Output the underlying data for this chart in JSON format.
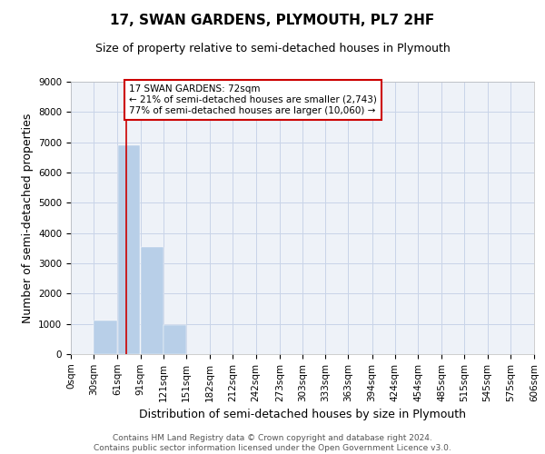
{
  "title": "17, SWAN GARDENS, PLYMOUTH, PL7 2HF",
  "subtitle": "Size of property relative to semi-detached houses in Plymouth",
  "xlabel": "Distribution of semi-detached houses by size in Plymouth",
  "ylabel": "Number of semi-detached properties",
  "property_size": 72,
  "property_label": "17 SWAN GARDENS: 72sqm",
  "smaller_pct": 21,
  "smaller_count": 2743,
  "larger_pct": 77,
  "larger_count": 10060,
  "bin_edges": [
    0,
    30,
    61,
    91,
    121,
    151,
    182,
    212,
    242,
    273,
    303,
    333,
    363,
    394,
    424,
    454,
    485,
    515,
    545,
    575,
    606
  ],
  "bar_values": [
    0,
    1100,
    6900,
    3550,
    950,
    0,
    0,
    0,
    0,
    0,
    0,
    0,
    0,
    0,
    0,
    0,
    0,
    0,
    0,
    0
  ],
  "bar_color": "#b8cfe8",
  "red_line_color": "#cc0000",
  "annotation_box_color": "#cc0000",
  "grid_color": "#c8d4e8",
  "background_color": "#eef2f8",
  "ylim": [
    0,
    9000
  ],
  "yticks": [
    0,
    1000,
    2000,
    3000,
    4000,
    5000,
    6000,
    7000,
    8000,
    9000
  ],
  "tick_labels": [
    "0sqm",
    "30sqm",
    "61sqm",
    "91sqm",
    "121sqm",
    "151sqm",
    "182sqm",
    "212sqm",
    "242sqm",
    "273sqm",
    "303sqm",
    "333sqm",
    "363sqm",
    "394sqm",
    "424sqm",
    "454sqm",
    "485sqm",
    "515sqm",
    "545sqm",
    "575sqm",
    "606sqm"
  ],
  "footer_line1": "Contains HM Land Registry data © Crown copyright and database right 2024.",
  "footer_line2": "Contains public sector information licensed under the Open Government Licence v3.0.",
  "title_fontsize": 11,
  "subtitle_fontsize": 9,
  "axis_label_fontsize": 9,
  "tick_fontsize": 7.5,
  "footer_fontsize": 6.5
}
